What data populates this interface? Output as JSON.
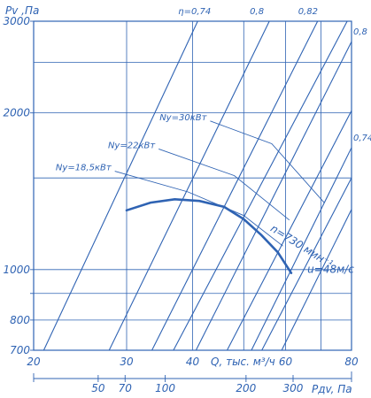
{
  "chart_data": {
    "type": "line",
    "title": "",
    "ylabel": "Pv ,Па",
    "xlabel": "Q, тыс. м³/ч",
    "x2label": "Pдv, Па",
    "x_scale": "log",
    "y_scale": "log",
    "xlim": [
      20,
      80
    ],
    "ylim": [
      700,
      3000
    ],
    "x_ticks": [
      20,
      30,
      40,
      60,
      80
    ],
    "x_tick_labels": [
      "20",
      "30",
      "40",
      "60",
      "80"
    ],
    "x_minor_grid": [
      50,
      70
    ],
    "y_ticks": [
      700,
      800,
      900,
      1000,
      2000,
      3000
    ],
    "y_tick_labels": [
      "700",
      "800",
      "",
      "1000",
      "2000",
      "3000"
    ],
    "x2_ticks": [
      {
        "label": "50",
        "q": 26.5
      },
      {
        "label": "70",
        "q": 29.8
      },
      {
        "label": "100",
        "q": 35.5
      },
      {
        "label": "200",
        "q": 50.5
      },
      {
        "label": "300",
        "q": 62.0
      }
    ],
    "efficiency_lines": [
      {
        "label": "η=0,74",
        "points": [
          [
            20.9,
            700
          ],
          [
            40.9,
            3000
          ]
        ]
      },
      {
        "label": "0,8",
        "points": [
          [
            27.8,
            700
          ],
          [
            55.9,
            3000
          ]
        ]
      },
      {
        "label": "0,82",
        "points": [
          [
            33.5,
            700
          ],
          [
            69.0,
            3000
          ]
        ]
      },
      {
        "label": "0,8",
        "points": [
          [
            40.6,
            700
          ],
          [
            80.0,
            2740
          ]
        ]
      },
      {
        "label": "0,74",
        "points": [
          [
            51.7,
            700
          ],
          [
            80.0,
            1715
          ]
        ]
      },
      {
        "label": "",
        "points": [
          [
            36.8,
            700
          ],
          [
            78.5,
            3000
          ]
        ]
      },
      {
        "label": "",
        "points": [
          [
            46.5,
            700
          ],
          [
            80.0,
            2020
          ]
        ]
      },
      {
        "label": "",
        "points": [
          [
            54.1,
            700
          ],
          [
            80.0,
            1500
          ]
        ]
      },
      {
        "label": "",
        "points": [
          [
            59.0,
            700
          ],
          [
            80.0,
            1305
          ]
        ]
      }
    ],
    "power_lines": [
      {
        "label": "Nу=30кВт",
        "points": [
          [
            43.2,
            1930
          ],
          [
            56.5,
            1745
          ],
          [
            71.0,
            1345
          ]
        ]
      },
      {
        "label": "Nу=22кВт",
        "points": [
          [
            34.5,
            1705
          ],
          [
            48.0,
            1515
          ],
          [
            61.0,
            1245
          ]
        ]
      },
      {
        "label": "Nу=18,5кВт",
        "points": [
          [
            28.5,
            1545
          ],
          [
            39.2,
            1410
          ],
          [
            50.0,
            1270
          ],
          [
            59.3,
            1110
          ]
        ]
      }
    ],
    "series": [
      {
        "name": "n=730 мин⁻¹",
        "points": [
          [
            30.0,
            1300
          ],
          [
            33.3,
            1345
          ],
          [
            37.0,
            1365
          ],
          [
            41.2,
            1355
          ],
          [
            45.9,
            1320
          ],
          [
            50.0,
            1250
          ],
          [
            54.0,
            1165
          ],
          [
            58.0,
            1080
          ],
          [
            61.5,
            985
          ]
        ]
      }
    ],
    "annotations": [
      {
        "text": "n=730 мин⁻¹",
        "x": 56.0,
        "y": 1190
      },
      {
        "text": "u=48м/с",
        "x": 66.0,
        "y": 985
      }
    ]
  }
}
